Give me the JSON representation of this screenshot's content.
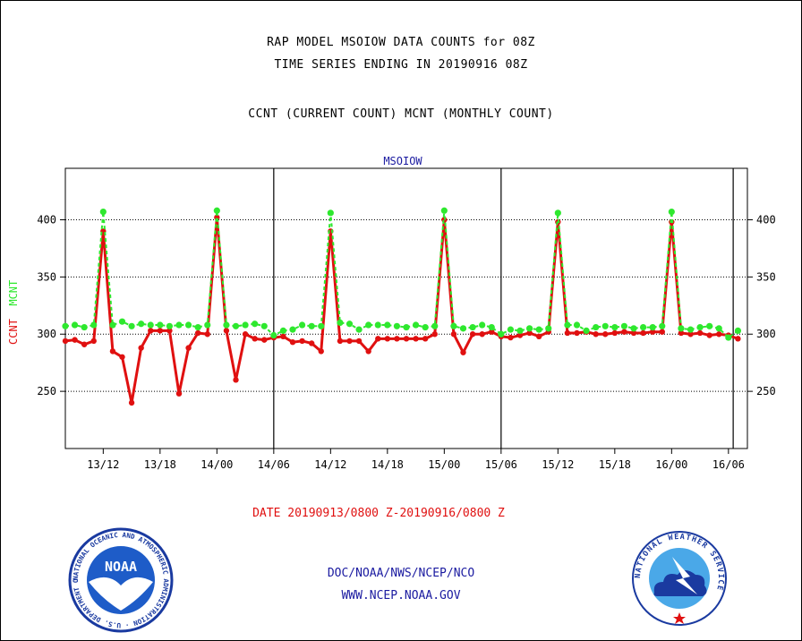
{
  "header": {
    "title1": "RAP MODEL MSOIOW DATA COUNTS for 08Z",
    "title2": "TIME SERIES ENDING IN 20190916 08Z",
    "title3": "CCNT (CURRENT COUNT) MCNT (MONTHLY COUNT)"
  },
  "footer": {
    "date_range": "DATE 20190913/0800 Z-20190916/0800 Z",
    "org": "DOC/NOAA/NWS/NCEP/NCO",
    "url": "WWW.NCEP.NOAA.GOV"
  },
  "logos": {
    "noaa_text": "NOAA",
    "noaa_ring": "NATIONAL OCEANIC AND ATMOSPHERIC ADMINISTRATION · U.S. DEPARTMENT OF COMMERCE",
    "nws_ring": "NATIONAL WEATHER SERVICE"
  },
  "chart_data": {
    "type": "line",
    "title": "MSOIOW",
    "ylabel_left_a": "CCNT",
    "ylabel_left_b": "MCNT",
    "ylim": [
      200,
      445
    ],
    "yticks": [
      250,
      300,
      350,
      400
    ],
    "xlim": [
      0,
      72
    ],
    "xticks": [
      {
        "x": 4,
        "label": "13/12"
      },
      {
        "x": 10,
        "label": "13/18"
      },
      {
        "x": 16,
        "label": "14/00"
      },
      {
        "x": 22,
        "label": "14/06"
      },
      {
        "x": 28,
        "label": "14/12"
      },
      {
        "x": 34,
        "label": "14/18"
      },
      {
        "x": 40,
        "label": "15/00"
      },
      {
        "x": 46,
        "label": "15/06"
      },
      {
        "x": 52,
        "label": "15/12"
      },
      {
        "x": 58,
        "label": "15/18"
      },
      {
        "x": 64,
        "label": "16/00"
      },
      {
        "x": 70,
        "label": "16/06"
      }
    ],
    "day_dividers": [
      22,
      46,
      70.5
    ],
    "grid": "horizontal dotted",
    "colors": {
      "ccnt": "#e01010",
      "mcnt": "#2ee82e",
      "axis": "#000000",
      "title": "#1a1aa0"
    },
    "series": [
      {
        "name": "CCNT",
        "color": "#e01010",
        "values": [
          294,
          295,
          291,
          294,
          390,
          285,
          280,
          240,
          288,
          303,
          303,
          303,
          248,
          288,
          301,
          300,
          402,
          303,
          260,
          300,
          296,
          295,
          297,
          298,
          293,
          294,
          292,
          285,
          390,
          294,
          294,
          294,
          285,
          296,
          296,
          296,
          296,
          296,
          296,
          300,
          400,
          300,
          284,
          300,
          300,
          302,
          298,
          297,
          299,
          301,
          298,
          302,
          398,
          301,
          301,
          302,
          300,
          300,
          301,
          302,
          301,
          301,
          302,
          302,
          398,
          301,
          300,
          301,
          299,
          300,
          299,
          296
        ]
      },
      {
        "name": "MCNT",
        "color": "#2ee82e",
        "values": [
          307,
          308,
          306,
          308,
          407,
          308,
          311,
          307,
          309,
          308,
          308,
          307,
          308,
          308,
          306,
          308,
          408,
          308,
          307,
          308,
          309,
          307,
          299,
          303,
          304,
          308,
          307,
          307,
          406,
          310,
          309,
          304,
          308,
          308,
          308,
          307,
          306,
          308,
          306,
          307,
          408,
          307,
          305,
          306,
          308,
          306,
          300,
          304,
          303,
          305,
          304,
          305,
          406,
          308,
          308,
          303,
          306,
          307,
          306,
          307,
          305,
          306,
          306,
          307,
          407,
          305,
          304,
          306,
          307,
          305,
          297,
          303
        ]
      }
    ]
  }
}
